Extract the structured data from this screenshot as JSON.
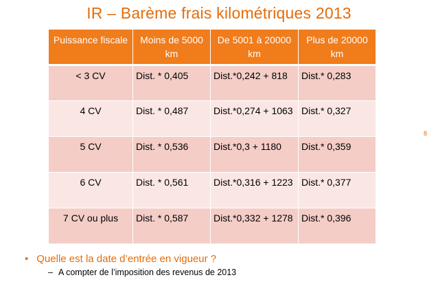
{
  "title": "IR – Barème frais kilométriques 2013",
  "page_number": "8",
  "table": {
    "headers": [
      "Puissance fiscale",
      "Moins de 5000 km",
      "De 5001 à 20000 km",
      "Plus de 20000 km"
    ],
    "rows": [
      [
        "< 3 CV",
        "Dist. * 0,405",
        "Dist.*0,242 + 818",
        "Dist.* 0,283"
      ],
      [
        "4 CV",
        "Dist. * 0,487",
        "Dist.*0,274 + 1063",
        "Dist.* 0,327"
      ],
      [
        "5 CV",
        "Dist. * 0,536",
        "Dist.*0,3 + 1180",
        "Dist.* 0,359"
      ],
      [
        "6 CV",
        "Dist. * 0,561",
        "Dist.*0,316 + 1223",
        "Dist.* 0,377"
      ],
      [
        "7 CV ou plus",
        "Dist. * 0,587",
        "Dist.*0,332 + 1278",
        "Dist.* 0,396"
      ]
    ]
  },
  "bullet": {
    "marker": "•",
    "text": "Quelle est la date d’entrée en vigueur ?",
    "sub_marker": "–",
    "sub_text": "A compter de l’imposition des revenus de 2013"
  },
  "colors": {
    "accent": "#e46c0a",
    "header_bg": "#f07c1b",
    "row_dark": "#f4cdc7",
    "row_light": "#fae7e4"
  }
}
